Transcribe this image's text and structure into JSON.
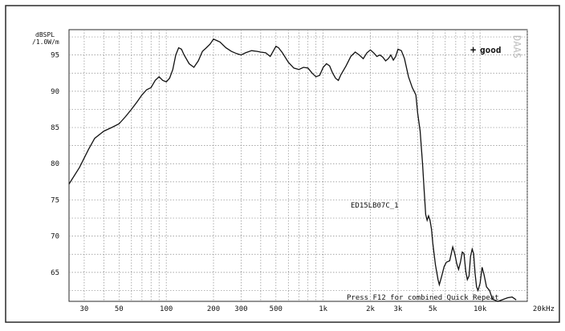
{
  "ylabel_line1": "dBSPL",
  "ylabel_line2": "/1.0W/m",
  "legend_label": "good",
  "legend_marker": "+",
  "watermark": "DAAS",
  "trace_label": "ED15LB07C_1",
  "footer_text": "Press F12 for combined Quick Repeat",
  "colors": {
    "frame": "#2a2a2a",
    "grid": "#8a8a8a",
    "curve": "#111111"
  },
  "chart_data": {
    "type": "line",
    "title": "",
    "xlabel": "",
    "ylabel": "dBSPL /1.0W/m",
    "x_scale": "log",
    "x_range": [
      24,
      20000
    ],
    "y_range": [
      61,
      98.5
    ],
    "grid": true,
    "legend": "top-right",
    "x_ticks": [
      {
        "value": 30,
        "label": "30"
      },
      {
        "value": 50,
        "label": "50"
      },
      {
        "value": 100,
        "label": "100"
      },
      {
        "value": 200,
        "label": "200"
      },
      {
        "value": 300,
        "label": "300"
      },
      {
        "value": 500,
        "label": "500"
      },
      {
        "value": 1000,
        "label": "1k"
      },
      {
        "value": 2000,
        "label": "2k"
      },
      {
        "value": 3000,
        "label": "3k"
      },
      {
        "value": 5000,
        "label": "5k"
      },
      {
        "value": 10000,
        "label": "10k"
      },
      {
        "value": 20000,
        "label": "20kHz"
      }
    ],
    "y_ticks": [
      65,
      70,
      75,
      80,
      85,
      90,
      95
    ],
    "series": [
      {
        "name": "good",
        "points": [
          [
            24,
            77.2
          ],
          [
            28,
            79.5
          ],
          [
            32,
            82
          ],
          [
            35,
            83.5
          ],
          [
            40,
            84.5
          ],
          [
            45,
            85
          ],
          [
            50,
            85.5
          ],
          [
            55,
            86.5
          ],
          [
            60,
            87.5
          ],
          [
            65,
            88.5
          ],
          [
            70,
            89.5
          ],
          [
            75,
            90.2
          ],
          [
            80,
            90.5
          ],
          [
            85,
            91.5
          ],
          [
            90,
            92
          ],
          [
            95,
            91.5
          ],
          [
            100,
            91.3
          ],
          [
            105,
            91.8
          ],
          [
            110,
            93
          ],
          [
            115,
            95
          ],
          [
            120,
            96
          ],
          [
            125,
            95.8
          ],
          [
            130,
            95
          ],
          [
            140,
            93.8
          ],
          [
            150,
            93.3
          ],
          [
            160,
            94.2
          ],
          [
            170,
            95.5
          ],
          [
            180,
            96
          ],
          [
            190,
            96.5
          ],
          [
            200,
            97.2
          ],
          [
            210,
            97
          ],
          [
            220,
            96.8
          ],
          [
            240,
            96
          ],
          [
            260,
            95.5
          ],
          [
            280,
            95.2
          ],
          [
            300,
            95
          ],
          [
            320,
            95.3
          ],
          [
            350,
            95.6
          ],
          [
            380,
            95.5
          ],
          [
            400,
            95.4
          ],
          [
            430,
            95.3
          ],
          [
            460,
            94.8
          ],
          [
            480,
            95.5
          ],
          [
            500,
            96.2
          ],
          [
            520,
            96
          ],
          [
            550,
            95.3
          ],
          [
            600,
            94
          ],
          [
            650,
            93.2
          ],
          [
            700,
            93
          ],
          [
            750,
            93.3
          ],
          [
            800,
            93.2
          ],
          [
            850,
            92.5
          ],
          [
            900,
            92
          ],
          [
            950,
            92.2
          ],
          [
            1000,
            93.3
          ],
          [
            1050,
            93.8
          ],
          [
            1100,
            93.5
          ],
          [
            1150,
            92.5
          ],
          [
            1200,
            91.8
          ],
          [
            1250,
            91.5
          ],
          [
            1300,
            92.3
          ],
          [
            1400,
            93.5
          ],
          [
            1500,
            94.8
          ],
          [
            1600,
            95.4
          ],
          [
            1700,
            95
          ],
          [
            1800,
            94.5
          ],
          [
            1900,
            95.3
          ],
          [
            2000,
            95.7
          ],
          [
            2100,
            95.3
          ],
          [
            2200,
            94.8
          ],
          [
            2300,
            95
          ],
          [
            2400,
            94.7
          ],
          [
            2500,
            94.2
          ],
          [
            2600,
            94.5
          ],
          [
            2700,
            95
          ],
          [
            2800,
            94.3
          ],
          [
            2900,
            94.8
          ],
          [
            3000,
            95.8
          ],
          [
            3150,
            95.6
          ],
          [
            3300,
            94.5
          ],
          [
            3500,
            92
          ],
          [
            3700,
            90.5
          ],
          [
            3900,
            89.5
          ],
          [
            4000,
            87
          ],
          [
            4150,
            84.5
          ],
          [
            4300,
            80
          ],
          [
            4400,
            76.5
          ],
          [
            4500,
            73
          ],
          [
            4600,
            72.2
          ],
          [
            4700,
            72.8
          ],
          [
            4800,
            72.2
          ],
          [
            4900,
            71
          ],
          [
            5000,
            69
          ],
          [
            5200,
            66
          ],
          [
            5400,
            64
          ],
          [
            5500,
            63.3
          ],
          [
            5700,
            64.5
          ],
          [
            5900,
            65.8
          ],
          [
            6100,
            66.4
          ],
          [
            6400,
            66.6
          ],
          [
            6700,
            68.5
          ],
          [
            6900,
            67.6
          ],
          [
            7100,
            66.2
          ],
          [
            7300,
            65.4
          ],
          [
            7500,
            66.4
          ],
          [
            7700,
            67.8
          ],
          [
            7900,
            67.6
          ],
          [
            8100,
            65.2
          ],
          [
            8300,
            64
          ],
          [
            8500,
            64.5
          ],
          [
            8700,
            67.2
          ],
          [
            8900,
            68.2
          ],
          [
            9100,
            67.6
          ],
          [
            9300,
            64.8
          ],
          [
            9500,
            63
          ],
          [
            9700,
            62.5
          ],
          [
            10000,
            63.5
          ],
          [
            10300,
            65.7
          ],
          [
            10600,
            64.7
          ],
          [
            11000,
            63
          ],
          [
            11500,
            62.5
          ],
          [
            12000,
            61.3
          ],
          [
            13000,
            61
          ],
          [
            15000,
            61.5
          ],
          [
            16000,
            61.6
          ],
          [
            17000,
            61.2
          ]
        ]
      }
    ]
  }
}
